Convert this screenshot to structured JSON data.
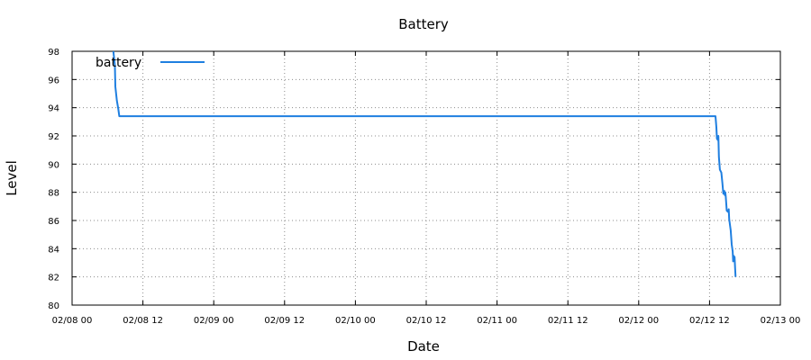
{
  "chart_data": {
    "type": "line",
    "title": "Battery",
    "xlabel": "Date",
    "ylabel": "Level",
    "xlim": [
      "02/08 00",
      "02/13 00"
    ],
    "ylim": [
      80,
      98
    ],
    "x_ticks": [
      "02/08 00",
      "02/08 12",
      "02/09 00",
      "02/09 12",
      "02/10 00",
      "02/10 12",
      "02/11 00",
      "02/11 12",
      "02/12 00",
      "02/12 12",
      "02/13 00"
    ],
    "y_ticks": [
      "80",
      "82",
      "84",
      "86",
      "88",
      "90",
      "92",
      "94",
      "96",
      "98"
    ],
    "grid": true,
    "legend": {
      "position": "top-left"
    },
    "series": [
      {
        "name": "battery",
        "color": "#1f7fe0",
        "points": [
          [
            "02/08 07:00",
            98.0
          ],
          [
            "02/08 07:15",
            97.0
          ],
          [
            "02/08 07:20",
            95.5
          ],
          [
            "02/08 07:35",
            94.5
          ],
          [
            "02/08 07:50",
            93.9
          ],
          [
            "02/08 08:00",
            93.4
          ],
          [
            "02/12 13:00",
            93.4
          ],
          [
            "02/12 13:10",
            92.6
          ],
          [
            "02/12 13:15",
            91.8
          ],
          [
            "02/12 13:25",
            91.7
          ],
          [
            "02/12 13:30",
            92.0
          ],
          [
            "02/12 13:35",
            90.5
          ],
          [
            "02/12 13:45",
            89.6
          ],
          [
            "02/12 14:00",
            89.4
          ],
          [
            "02/12 14:10",
            88.7
          ],
          [
            "02/12 14:20",
            87.9
          ],
          [
            "02/12 14:30",
            88.1
          ],
          [
            "02/12 14:35",
            87.8
          ],
          [
            "02/12 14:40",
            88.0
          ],
          [
            "02/12 14:45",
            87.7
          ],
          [
            "02/12 14:55",
            86.7
          ],
          [
            "02/12 15:10",
            86.6
          ],
          [
            "02/12 15:15",
            86.8
          ],
          [
            "02/12 15:20",
            86.1
          ],
          [
            "02/12 15:35",
            85.3
          ],
          [
            "02/12 15:45",
            84.3
          ],
          [
            "02/12 15:55",
            83.8
          ],
          [
            "02/12 16:00",
            83.1
          ],
          [
            "02/12 16:05",
            83.5
          ],
          [
            "02/12 16:15",
            83.4
          ],
          [
            "02/12 16:20",
            82.6
          ],
          [
            "02/12 16:25",
            82.0
          ]
        ]
      }
    ]
  }
}
